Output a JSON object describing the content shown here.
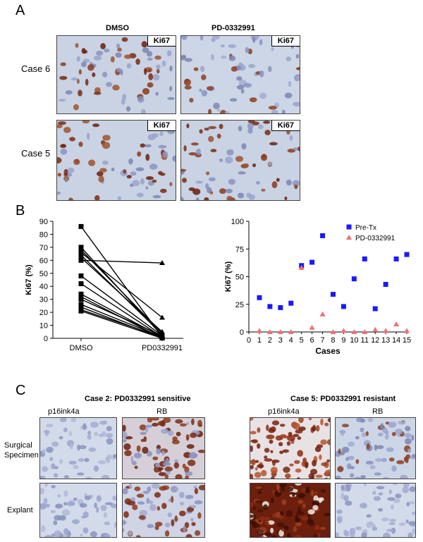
{
  "panelA": {
    "letter": "A",
    "col_labels": [
      "DMSO",
      "PD-0332991"
    ],
    "row_labels": [
      "Case 6",
      "Case 5"
    ],
    "stain_tag": "Ki67"
  },
  "panelB": {
    "letter": "B"
  },
  "panelC": {
    "letter": "C",
    "case2_title": "Case 2: PD0332991 sensitive",
    "case5_title": "Case 5: PD0332991 resistant",
    "col_labels": [
      "p16ink4a",
      "RB"
    ],
    "row_labels": [
      "Surgical Specimen",
      "Explant"
    ]
  },
  "chart_data": [
    {
      "type": "line",
      "title": "",
      "xlabel": "",
      "ylabel": "Ki67 (%)",
      "categories": [
        "DMSO",
        "PD0332991"
      ],
      "ylim": [
        0,
        90
      ],
      "yticks": [
        0,
        10,
        20,
        30,
        40,
        50,
        60,
        70,
        80,
        90
      ],
      "pairs": [
        [
          86,
          1
        ],
        [
          70,
          2
        ],
        [
          68,
          4
        ],
        [
          66,
          16
        ],
        [
          64,
          3
        ],
        [
          62,
          5
        ],
        [
          60,
          58
        ],
        [
          48,
          2
        ],
        [
          42,
          1
        ],
        [
          34,
          1
        ],
        [
          32,
          0
        ],
        [
          30,
          2
        ],
        [
          26,
          1
        ],
        [
          24,
          0
        ],
        [
          22,
          1
        ],
        [
          21,
          0
        ]
      ]
    },
    {
      "type": "scatter",
      "title": "",
      "xlabel": "Cases",
      "ylabel": "Ki67 (%)",
      "xlim": [
        0,
        15
      ],
      "ylim": [
        0,
        100
      ],
      "xticks": [
        0,
        1,
        2,
        3,
        4,
        5,
        6,
        7,
        8,
        9,
        10,
        11,
        12,
        13,
        14,
        15
      ],
      "yticks": [
        0,
        25,
        50,
        75,
        100
      ],
      "legend_position": "top-right",
      "series": [
        {
          "name": "Pre-Tx",
          "color": "#1a1aff",
          "marker": "square",
          "x": [
            1,
            2,
            3,
            4,
            5,
            6,
            7,
            8,
            9,
            10,
            11,
            12,
            13,
            14,
            15
          ],
          "y": [
            31,
            23,
            22,
            26,
            60,
            63,
            87,
            34,
            23,
            48,
            66,
            21,
            43,
            66,
            70
          ]
        },
        {
          "name": "PD-0332991",
          "color": "#f07070",
          "marker": "triangle",
          "x": [
            1,
            2,
            3,
            4,
            5,
            6,
            7,
            8,
            9,
            10,
            11,
            12,
            13,
            14,
            15
          ],
          "y": [
            1,
            0,
            0,
            0,
            58,
            4,
            16,
            0,
            1,
            0,
            0,
            2,
            1,
            7,
            1
          ]
        }
      ]
    }
  ]
}
